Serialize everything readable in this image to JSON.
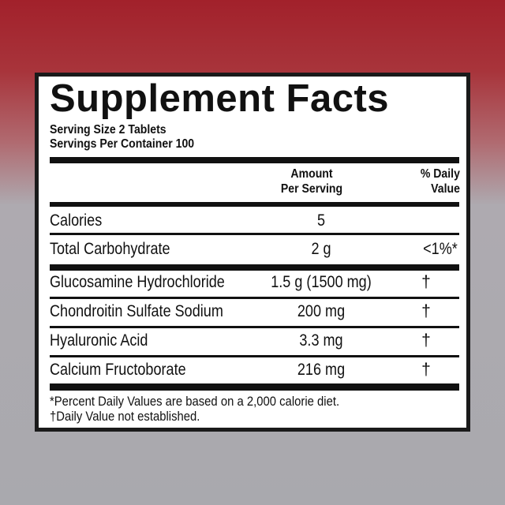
{
  "label": {
    "title": "Supplement Facts",
    "serving_size": "Serving Size 2 Tablets",
    "servings_per_container": "Servings Per Container 100",
    "header": {
      "amount_line1": "Amount",
      "amount_line2": "Per Serving",
      "dv_line1": "% Daily",
      "dv_line2": "Value"
    },
    "rows": [
      {
        "name": "Calories",
        "amount": "5",
        "dv": ""
      },
      {
        "name": "Total Carbohydrate",
        "amount": "2 g",
        "dv": "<1%*"
      },
      {
        "name": "Glucosamine Hydrochloride",
        "amount": "1.5 g (1500 mg)",
        "dv": "†"
      },
      {
        "name": "Chondroitin Sulfate Sodium",
        "amount": "200 mg",
        "dv": "†"
      },
      {
        "name": "Hyaluronic Acid",
        "amount": "3.3 mg",
        "dv": "†"
      },
      {
        "name": "Calcium Fructoborate",
        "amount": "216 mg",
        "dv": "†"
      }
    ],
    "footnote1": "*Percent Daily Values are based on a 2,000 calorie diet.",
    "footnote2": "†Daily Value not established."
  },
  "colors": {
    "background_top": "#a2212b",
    "background_bottom": "#a9a9ae",
    "ink": "#111111"
  }
}
